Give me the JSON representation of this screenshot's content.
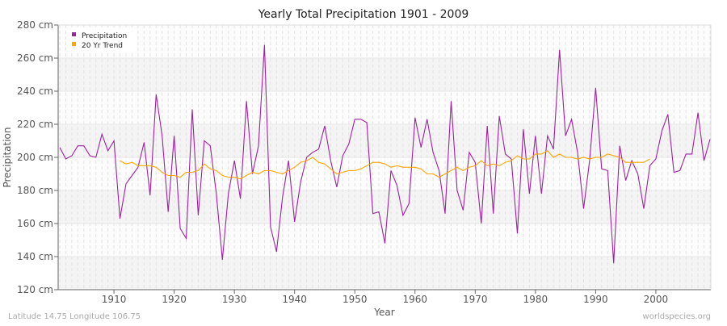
{
  "chart_data": {
    "type": "line",
    "title": "Yearly Total Precipitation 1901 - 2009",
    "xlabel": "Year",
    "ylabel": "Precipitation",
    "xlim": [
      1901,
      2009
    ],
    "ylim": [
      120,
      280
    ],
    "yticks": [
      120,
      140,
      160,
      180,
      200,
      220,
      240,
      260,
      280
    ],
    "ytick_unit": " cm",
    "xticks": [
      1910,
      1920,
      1930,
      1940,
      1950,
      1960,
      1970,
      1980,
      1990,
      2000
    ],
    "grid": true,
    "legend_position": "top-left",
    "series": [
      {
        "name": "Precipitation",
        "color": "#a020a0",
        "x_start": 1901,
        "values": [
          206,
          199,
          201,
          207,
          207,
          201,
          200,
          214,
          204,
          210,
          163,
          184,
          189,
          194,
          209,
          177,
          238,
          213,
          167,
          213,
          157,
          151,
          229,
          165,
          210,
          207,
          178,
          138,
          178,
          198,
          175,
          234,
          190,
          207,
          268,
          158,
          143,
          176,
          198,
          161,
          185,
          200,
          203,
          205,
          219,
          198,
          182,
          201,
          208,
          223,
          223,
          221,
          166,
          167,
          148,
          192,
          183,
          165,
          172,
          224,
          206,
          223,
          203,
          192,
          166,
          234,
          180,
          168,
          203,
          197,
          160,
          219,
          166,
          225,
          202,
          199,
          154,
          217,
          178,
          213,
          178,
          213,
          205,
          265,
          213,
          223,
          203,
          169,
          198,
          242,
          193,
          192,
          136,
          207,
          186,
          198,
          190,
          169,
          195,
          199,
          216,
          226,
          191,
          192,
          202,
          202,
          227,
          198,
          211
        ]
      },
      {
        "name": "20 Yr Trend",
        "color": "#ffa500",
        "x_start": 1911,
        "values": [
          198,
          196,
          197,
          195,
          195,
          195,
          194,
          191,
          189,
          189,
          188,
          191,
          191,
          192,
          196,
          193,
          192,
          189,
          188,
          188,
          187,
          189,
          191,
          190,
          192,
          192,
          191,
          190,
          192,
          194,
          197,
          198,
          200,
          197,
          196,
          193,
          190,
          191,
          192,
          192,
          193,
          195,
          197,
          197,
          196,
          194,
          195,
          194,
          194,
          194,
          193,
          190,
          190,
          188,
          190,
          192,
          194,
          192,
          194,
          195,
          198,
          195,
          196,
          195,
          197,
          198,
          201,
          199,
          199,
          202,
          202,
          204,
          200,
          202,
          200,
          200,
          199,
          200,
          199,
          200,
          200,
          202,
          201,
          200,
          197,
          197,
          197,
          197,
          199
        ]
      }
    ]
  },
  "footer": {
    "location": "Latitude 14.75 Longitude 106.75",
    "source": "worldspecies.org"
  }
}
